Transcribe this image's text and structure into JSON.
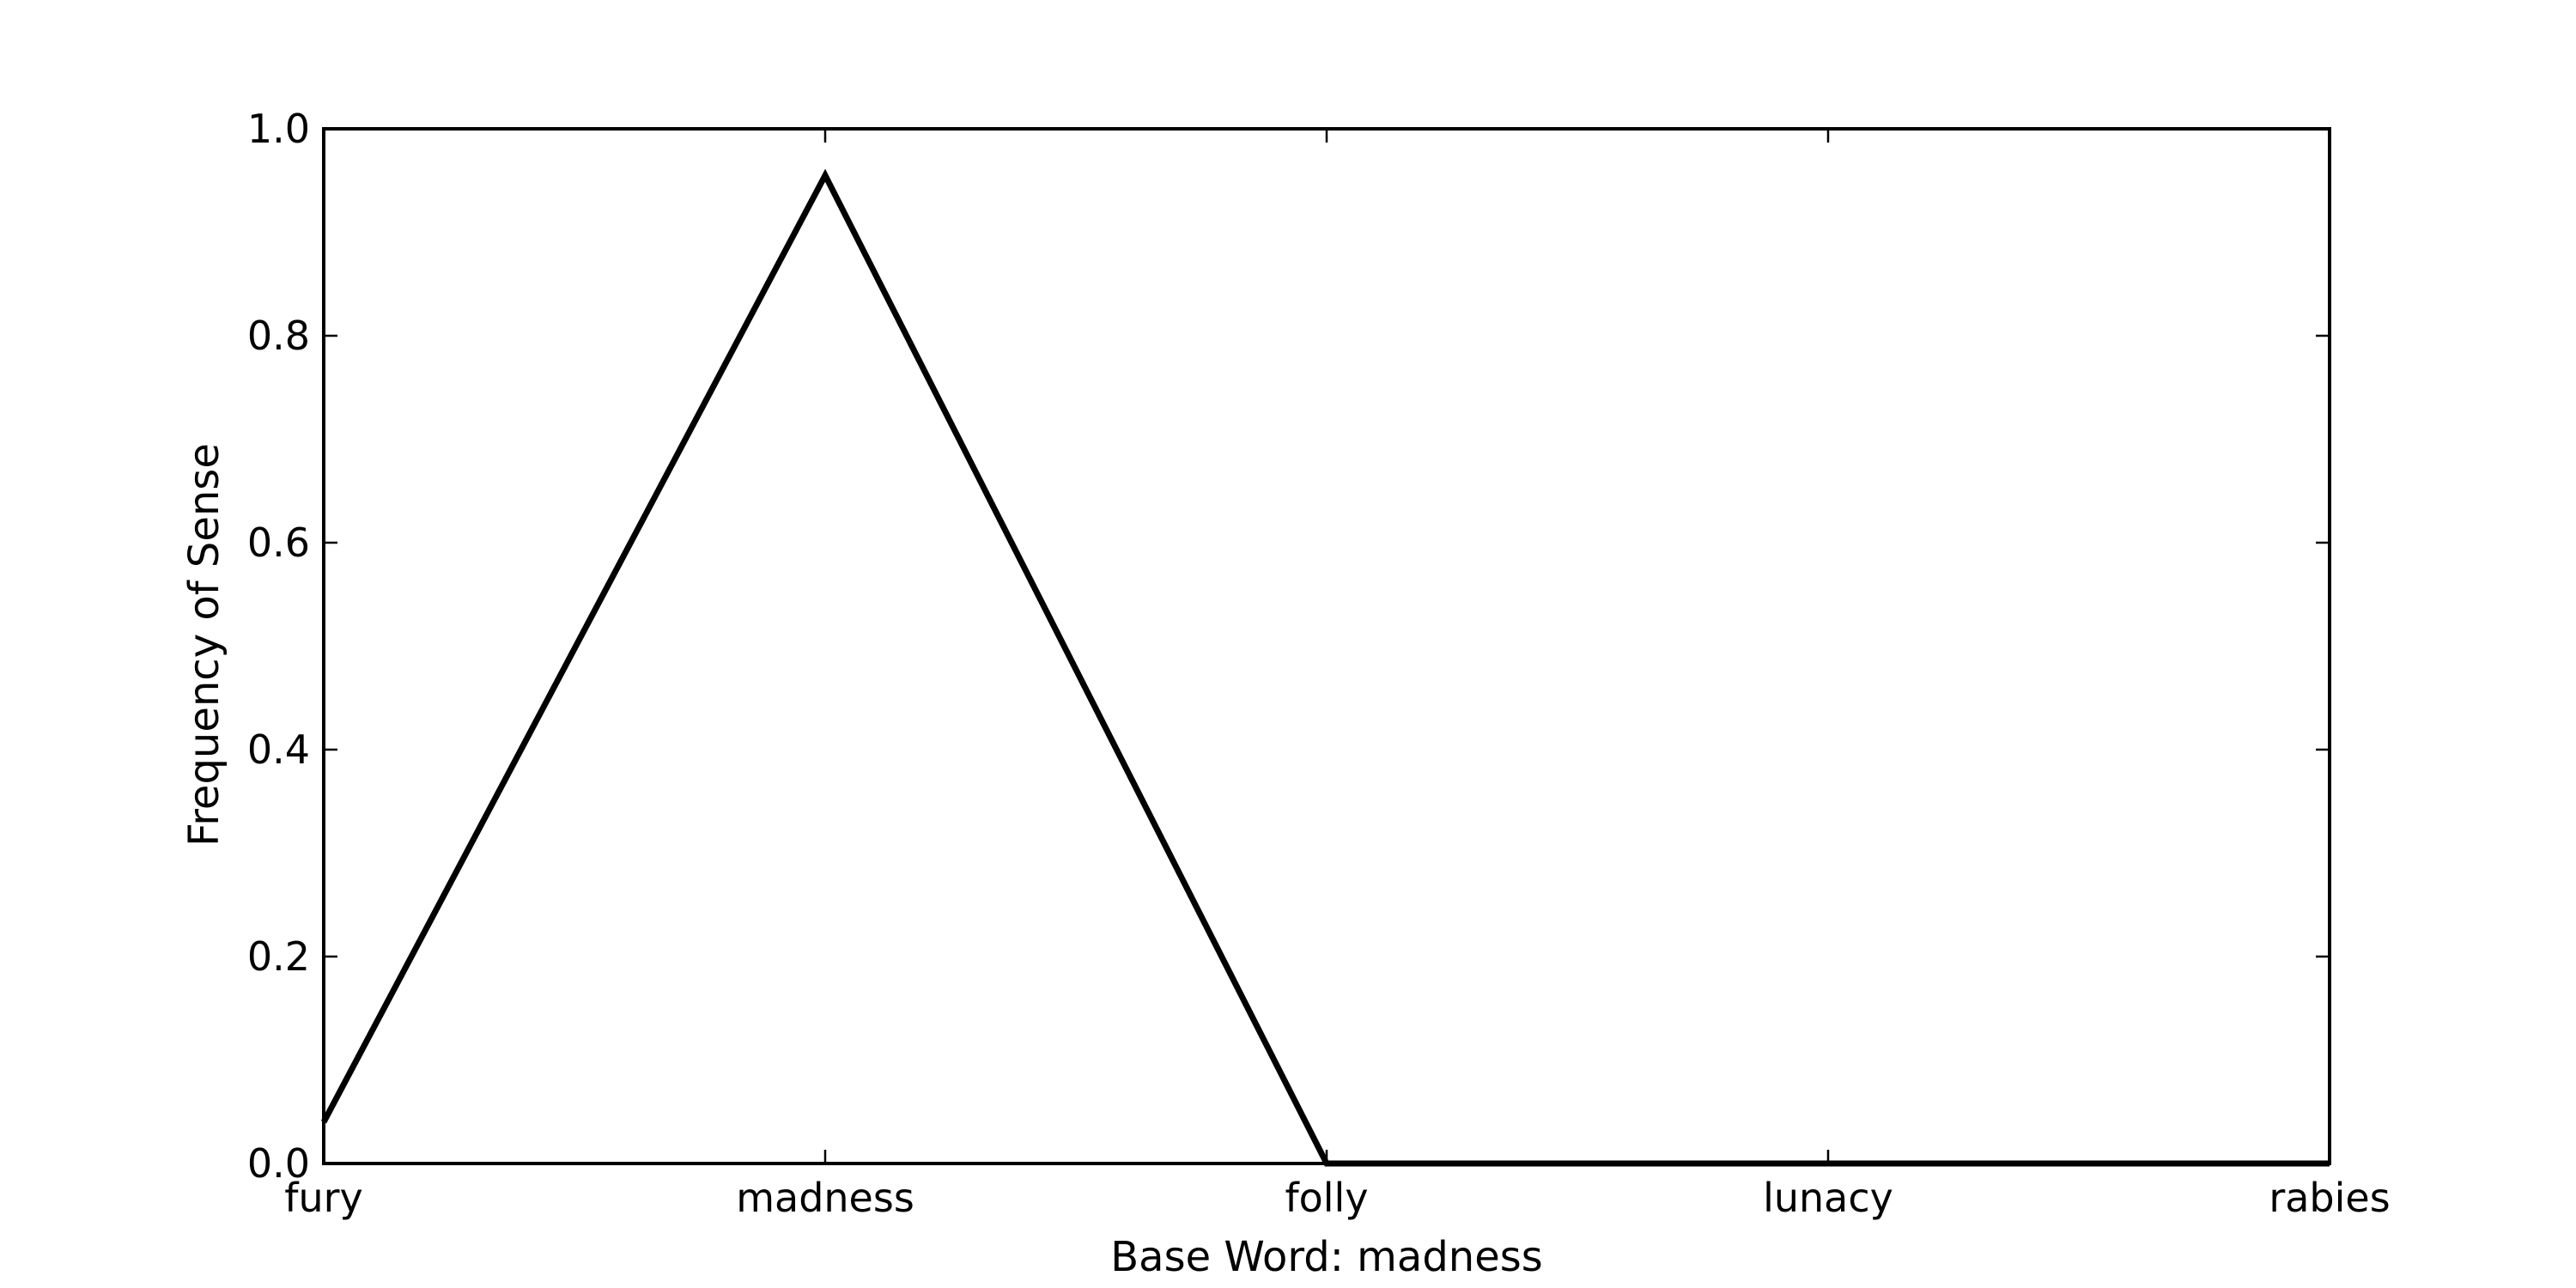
{
  "chart_data": {
    "type": "line",
    "title": "",
    "xlabel": "Base Word: madness",
    "ylabel": "Frequency of Sense",
    "categories": [
      "fury",
      "madness",
      "folly",
      "lunacy",
      "rabies"
    ],
    "series": [
      {
        "values": [
          0.04,
          0.955,
          0.0,
          0.0,
          0.0
        ]
      }
    ],
    "ylim": [
      0.0,
      1.0
    ],
    "yticks": [
      "0.0",
      "0.2",
      "0.4",
      "0.6",
      "0.8",
      "1.0"
    ],
    "grid": false,
    "legend": "none",
    "colors": {
      "line": "#000000",
      "axes": "#000000",
      "background": "#ffffff"
    }
  }
}
